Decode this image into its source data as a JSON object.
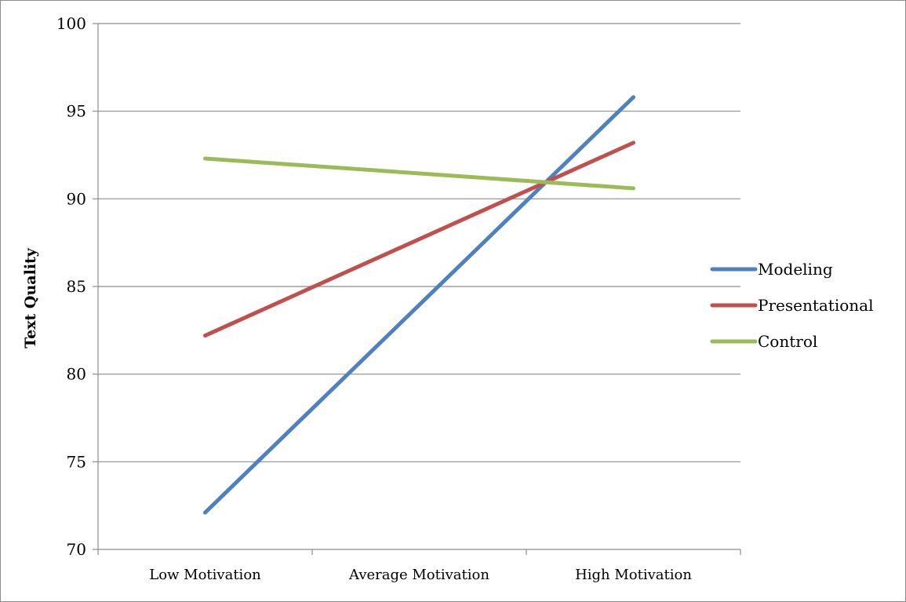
{
  "chart_data": {
    "type": "line",
    "title": "",
    "xlabel": "",
    "ylabel": "Text Quality",
    "categories": [
      "Low Motivation",
      "Average Motivation",
      "High Motivation"
    ],
    "ylim": [
      70,
      100
    ],
    "yticks": [
      70,
      75,
      80,
      85,
      90,
      95,
      100
    ],
    "grid": true,
    "legend_position": "right",
    "series": [
      {
        "name": "Modeling",
        "values": [
          72.1,
          null,
          95.8
        ],
        "color": "#4f81bd"
      },
      {
        "name": "Presentational",
        "values": [
          82.2,
          null,
          93.2
        ],
        "color": "#c0504d"
      },
      {
        "name": "Control",
        "values": [
          92.3,
          null,
          90.6
        ],
        "color": "#9bbb59"
      }
    ]
  }
}
